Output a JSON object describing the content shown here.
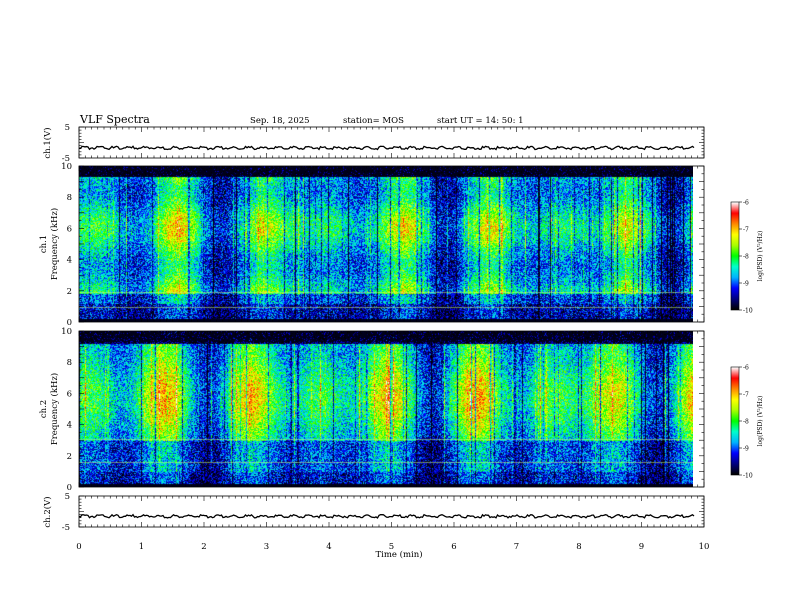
{
  "header": {
    "title": "VLF Spectra",
    "date": "Sep. 18, 2025",
    "station": "station= MOS",
    "start": "start UT =  14: 50: 1"
  },
  "chart_data": {
    "type": "heatmap",
    "x_axis": {
      "label": "Time (min)",
      "range": [
        0,
        10
      ],
      "ticks": [
        "0",
        "1",
        "2",
        "3",
        "4",
        "5",
        "6",
        "7",
        "8",
        "9",
        "10"
      ],
      "data_end_min": 9.85
    },
    "panels": [
      {
        "type": "line",
        "label": "ch.1(V)",
        "ylim": [
          -5,
          5
        ],
        "ticks": [
          "5",
          "-5"
        ],
        "baseline_value": -2
      },
      {
        "type": "heatmap",
        "label_channel": "ch.1",
        "label_freq": "Frequency (kHz)",
        "ylim": [
          0,
          10
        ],
        "ticks": [
          "0",
          "2",
          "4",
          "6",
          "8",
          "10"
        ],
        "colorbar": {
          "label": "log(PSD) (V²/Hz)",
          "range": [
            -10,
            -6
          ],
          "ticks": [
            "-6",
            "-7",
            "-8",
            "-9",
            "-10"
          ]
        }
      },
      {
        "type": "heatmap",
        "label_channel": "ch.2",
        "label_freq": "Frequency (kHz)",
        "ylim": [
          0,
          10
        ],
        "ticks": [
          "0",
          "2",
          "4",
          "6",
          "8",
          "10"
        ],
        "colorbar": {
          "label": "log(PSD) (V²/Hz)",
          "range": [
            -10,
            -6
          ],
          "ticks": [
            "-6",
            "-7",
            "-8",
            "-9",
            "-10"
          ]
        }
      },
      {
        "type": "line",
        "label": "ch.2(V)",
        "ylim": [
          -5,
          5
        ],
        "ticks": [
          "5",
          "-5"
        ],
        "baseline_value": -1.8
      }
    ]
  },
  "colors": {
    "bg": "#ffffff",
    "axis": "#000000",
    "colormap": [
      "#000000",
      "#000080",
      "#0000ff",
      "#00b4ff",
      "#00ffcc",
      "#00ff00",
      "#aaff00",
      "#ffff00",
      "#ff8800",
      "#ff0000",
      "#ffffff"
    ]
  }
}
